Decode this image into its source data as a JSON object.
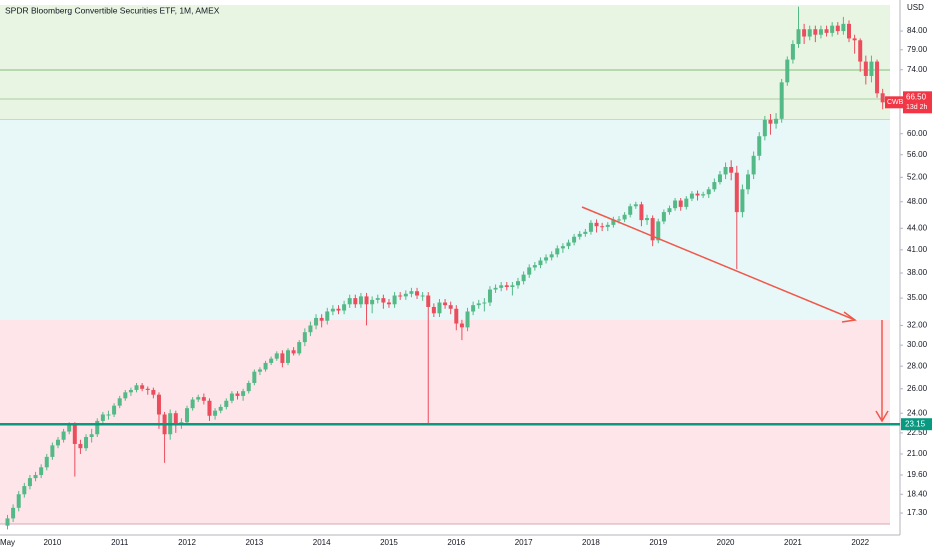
{
  "chart_data": {
    "type": "candlestick",
    "title": "SPDR Bloomberg Convertible Securities ETF, 1M, AMEX",
    "currency": "USD",
    "log_scale": true,
    "up_color": "#53b987",
    "down_color": "#eb4d5c",
    "ylim": [
      16.1,
      93
    ],
    "yticks": [
      {
        "value": 84,
        "label": "84.00"
      },
      {
        "value": 79,
        "label": "79.00"
      },
      {
        "value": 74,
        "label": "74.00"
      },
      {
        "value": 60,
        "label": "60.00"
      },
      {
        "value": 56,
        "label": "56.00"
      },
      {
        "value": 52,
        "label": "52.00"
      },
      {
        "value": 48,
        "label": "48.00"
      },
      {
        "value": 44,
        "label": "44.00"
      },
      {
        "value": 41,
        "label": "41.00"
      },
      {
        "value": 38,
        "label": "38.00"
      },
      {
        "value": 35,
        "label": "35.00"
      },
      {
        "value": 32,
        "label": "32.00"
      },
      {
        "value": 30,
        "label": "30.00"
      },
      {
        "value": 28,
        "label": "28.00"
      },
      {
        "value": 26,
        "label": "26.00"
      },
      {
        "value": 24,
        "label": "24.00"
      },
      {
        "value": 22.5,
        "label": "22.50"
      },
      {
        "value": 21,
        "label": "21.00"
      },
      {
        "value": 19.6,
        "label": "19.60"
      },
      {
        "value": 18.4,
        "label": "18.40"
      },
      {
        "value": 17.3,
        "label": "17.30"
      }
    ],
    "categories": [
      "May",
      null,
      null,
      null,
      null,
      null,
      null,
      null,
      "2010",
      null,
      null,
      null,
      null,
      null,
      null,
      null,
      null,
      null,
      null,
      null,
      "2011",
      null,
      null,
      null,
      null,
      null,
      null,
      null,
      null,
      null,
      null,
      null,
      "2012",
      null,
      null,
      null,
      null,
      null,
      null,
      null,
      null,
      null,
      null,
      null,
      "2013",
      null,
      null,
      null,
      null,
      null,
      null,
      null,
      null,
      null,
      null,
      null,
      "2014",
      null,
      null,
      null,
      null,
      null,
      null,
      null,
      null,
      null,
      null,
      null,
      "2015",
      null,
      null,
      null,
      null,
      null,
      null,
      null,
      null,
      null,
      null,
      null,
      "2016",
      null,
      null,
      null,
      null,
      null,
      null,
      null,
      null,
      null,
      null,
      null,
      "2017",
      null,
      null,
      null,
      null,
      null,
      null,
      null,
      null,
      null,
      null,
      null,
      "2018",
      null,
      null,
      null,
      null,
      null,
      null,
      null,
      null,
      null,
      null,
      null,
      "2019",
      null,
      null,
      null,
      null,
      null,
      null,
      null,
      null,
      null,
      null,
      null,
      "2020",
      null,
      null,
      null,
      null,
      null,
      null,
      null,
      null,
      null,
      null,
      null,
      "2021",
      null,
      null,
      null,
      null,
      null,
      null,
      null,
      null,
      null,
      null,
      null,
      "2022",
      null,
      null,
      null,
      null
    ],
    "open": [
      16.6,
      17.0,
      17.6,
      18.4,
      18.9,
      19.4,
      19.6,
      20.1,
      20.8,
      21.6,
      22.0,
      22.6,
      23.1,
      21.7,
      21.4,
      22.2,
      22.4,
      23.4,
      23.9,
      23.9,
      24.6,
      25.2,
      25.7,
      25.9,
      26.3,
      26.0,
      25.9,
      25.5,
      23.9,
      22.4,
      24.0,
      23.2,
      23.3,
      24.4,
      25.1,
      25.3,
      25.0,
      23.8,
      24.2,
      24.5,
      25.0,
      25.6,
      25.4,
      25.8,
      26.5,
      27.5,
      27.7,
      28.3,
      28.7,
      29.2,
      28.3,
      29.5,
      29.2,
      30.3,
      31.3,
      32.0,
      32.8,
      32.5,
      33.5,
      33.8,
      33.6,
      34.3,
      35.0,
      34.3,
      35.2,
      34.3,
      34.8,
      35.0,
      34.5,
      34.3,
      35.3,
      35.2,
      35.5,
      35.8,
      35.3,
      35.3,
      34.0,
      33.3,
      34.5,
      34.2,
      33.8,
      32.2,
      31.8,
      33.5,
      34.2,
      34.4,
      34.5,
      36.0,
      36.2,
      36.5,
      36.3,
      36.5,
      37.0,
      37.8,
      38.7,
      39.0,
      39.6,
      40.0,
      40.4,
      41.2,
      41.5,
      42.0,
      42.8,
      43.2,
      43.5,
      44.8,
      44.3,
      44.2,
      44.5,
      45.3,
      45.3,
      46.0,
      47.3,
      47.6,
      45.2,
      45.5,
      42.3,
      45.0,
      46.4,
      47.0,
      48.2,
      47.2,
      48.5,
      49.3,
      49.0,
      49.2,
      50.0,
      51.2,
      52.5,
      53.8,
      52.8,
      46.4,
      50.0,
      52.5,
      55.8,
      59.5,
      62.8,
      62.0,
      63.0,
      71.0,
      76.5,
      80.5,
      84.5,
      82.5,
      84.5,
      83.0,
      84.5,
      83.5,
      85.5,
      84.0,
      86.0,
      82.0,
      81.5,
      76.0,
      72.5,
      76.0,
      68.5
    ],
    "high": [
      17.2,
      17.8,
      18.6,
      19.1,
      19.6,
      19.8,
      20.3,
      21.0,
      21.8,
      22.2,
      22.8,
      23.3,
      23.3,
      22.0,
      22.4,
      22.8,
      23.6,
      24.1,
      24.2,
      24.8,
      25.4,
      25.9,
      26.1,
      26.5,
      26.5,
      26.2,
      26.1,
      25.7,
      24.1,
      24.3,
      24.2,
      23.6,
      24.6,
      25.3,
      25.5,
      25.6,
      25.2,
      24.4,
      24.7,
      25.2,
      25.8,
      25.8,
      26.0,
      26.7,
      27.7,
      27.9,
      28.5,
      28.9,
      29.4,
      29.5,
      29.7,
      29.8,
      30.5,
      31.7,
      32.4,
      33.2,
      33.2,
      33.9,
      34.2,
      34.2,
      34.7,
      35.4,
      35.4,
      35.6,
      35.6,
      35.2,
      35.4,
      35.4,
      34.9,
      35.7,
      35.7,
      35.9,
      36.2,
      36.2,
      35.7,
      35.7,
      34.4,
      34.9,
      34.9,
      34.6,
      34.2,
      32.6,
      33.9,
      34.6,
      34.8,
      35.0,
      36.4,
      36.6,
      36.9,
      36.9,
      36.9,
      37.4,
      38.2,
      39.1,
      39.4,
      40.0,
      40.4,
      40.8,
      41.6,
      41.9,
      42.4,
      43.2,
      43.6,
      43.9,
      45.2,
      45.3,
      44.8,
      44.9,
      45.7,
      45.8,
      46.4,
      47.7,
      48.0,
      48.0,
      46.0,
      45.9,
      45.4,
      46.8,
      47.4,
      48.6,
      48.6,
      48.9,
      49.7,
      49.8,
      49.6,
      50.4,
      51.8,
      53.1,
      54.6,
      55.0,
      54.0,
      50.8,
      53.3,
      56.6,
      60.3,
      63.6,
      64.0,
      64.2,
      71.8,
      77.3,
      81.5,
      91.0,
      86.0,
      85.5,
      85.5,
      85.5,
      85.5,
      86.5,
      86.5,
      88.0,
      87.0,
      83.0,
      82.0,
      77.5,
      77.5,
      76.5,
      69.5
    ],
    "low": [
      16.4,
      16.8,
      17.4,
      18.2,
      18.7,
      19.2,
      19.4,
      19.9,
      20.6,
      21.4,
      21.8,
      22.4,
      19.5,
      21.0,
      21.2,
      21.8,
      22.2,
      23.2,
      23.5,
      23.7,
      24.4,
      25.0,
      25.4,
      25.7,
      25.8,
      25.5,
      25.2,
      22.8,
      20.4,
      22.0,
      22.5,
      22.8,
      23.1,
      24.2,
      24.9,
      24.7,
      23.4,
      23.5,
      24.0,
      24.3,
      24.8,
      25.1,
      25.0,
      25.6,
      26.3,
      27.2,
      27.5,
      28.1,
      28.5,
      27.9,
      28.1,
      29.0,
      29.0,
      29.9,
      30.9,
      31.6,
      31.8,
      32.1,
      33.1,
      33.2,
      33.2,
      33.9,
      33.9,
      33.9,
      32.0,
      33.3,
      34.4,
      33.8,
      33.9,
      33.9,
      34.8,
      34.8,
      35.1,
      34.9,
      34.7,
      23.2,
      32.9,
      32.9,
      33.8,
      33.2,
      31.5,
      30.5,
      31.4,
      33.1,
      33.8,
      33.5,
      34.1,
      35.6,
      35.8,
      35.9,
      35.3,
      36.1,
      36.6,
      37.4,
      38.3,
      38.6,
      39.2,
      39.6,
      40.0,
      40.6,
      41.1,
      41.6,
      42.4,
      42.8,
      43.1,
      43.4,
      43.6,
      43.6,
      44.1,
      44.7,
      44.9,
      45.6,
      46.9,
      44.3,
      44.5,
      41.5,
      41.9,
      44.6,
      46.0,
      46.6,
      46.6,
      46.8,
      48.1,
      48.2,
      48.6,
      48.6,
      49.6,
      50.8,
      51.7,
      51.5,
      38.5,
      45.6,
      49.2,
      51.7,
      55.0,
      58.7,
      59.8,
      61.0,
      62.2,
      70.2,
      75.5,
      79.5,
      80.5,
      81.5,
      81.0,
      82.0,
      82.5,
      82.5,
      83.0,
      83.0,
      81.0,
      78.0,
      73.5,
      70.5,
      71.0,
      67.5,
      65.0
    ],
    "close": [
      17.0,
      17.6,
      18.4,
      18.9,
      19.4,
      19.6,
      20.1,
      20.8,
      21.6,
      22.0,
      22.6,
      23.1,
      21.7,
      21.4,
      22.2,
      22.4,
      23.4,
      23.9,
      23.9,
      24.6,
      25.2,
      25.7,
      25.9,
      26.3,
      26.0,
      25.9,
      25.5,
      23.9,
      22.4,
      24.0,
      23.2,
      23.3,
      24.4,
      25.1,
      25.3,
      25.0,
      23.8,
      24.2,
      24.5,
      25.0,
      25.6,
      25.4,
      25.8,
      26.5,
      27.5,
      27.7,
      28.3,
      28.7,
      29.2,
      28.3,
      29.5,
      29.2,
      30.3,
      31.3,
      32.0,
      32.8,
      32.5,
      33.5,
      33.8,
      33.6,
      34.3,
      35.0,
      34.3,
      35.2,
      34.3,
      34.8,
      35.0,
      34.5,
      34.3,
      35.3,
      35.2,
      35.5,
      35.8,
      35.3,
      35.3,
      34.0,
      33.3,
      34.5,
      34.2,
      33.8,
      32.2,
      31.8,
      33.5,
      34.2,
      34.4,
      34.5,
      36.0,
      36.2,
      36.5,
      36.3,
      36.5,
      37.0,
      37.8,
      38.7,
      39.0,
      39.6,
      40.0,
      40.4,
      41.2,
      41.5,
      42.0,
      42.8,
      43.2,
      43.5,
      44.8,
      44.3,
      44.2,
      44.5,
      45.3,
      45.3,
      46.0,
      47.3,
      47.6,
      45.2,
      45.5,
      42.3,
      45.0,
      46.4,
      47.0,
      48.2,
      47.2,
      48.5,
      49.3,
      49.0,
      49.2,
      50.0,
      51.2,
      52.5,
      53.8,
      52.8,
      46.4,
      50.0,
      52.5,
      55.8,
      59.5,
      62.8,
      62.0,
      63.0,
      71.0,
      76.5,
      80.5,
      84.5,
      82.5,
      84.5,
      83.0,
      84.5,
      83.5,
      85.5,
      84.0,
      86.0,
      82.0,
      81.5,
      76.0,
      72.5,
      76.0,
      68.5,
      66.5
    ],
    "hline": {
      "value": 23.15,
      "color": "#089981"
    },
    "last": {
      "symbol": "CWB",
      "price": {
        "value": 66.5,
        "label": "66.50"
      },
      "countdown": "13d 2h",
      "color": "#f23645"
    }
  }
}
